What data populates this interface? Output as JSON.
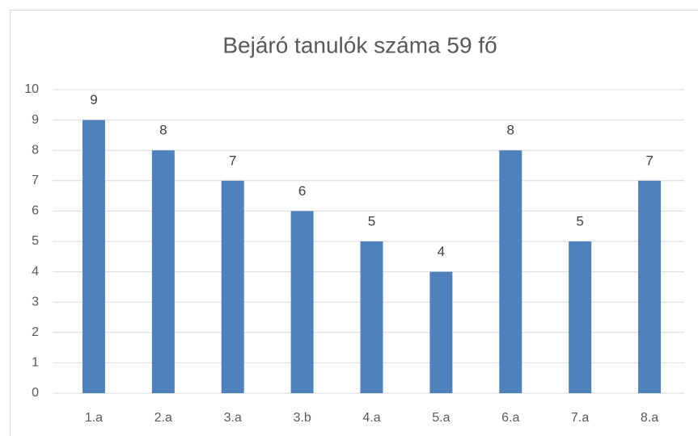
{
  "chart_data": {
    "type": "bar",
    "title": "Bejáró tanulók száma 59 fő",
    "categories": [
      "1.a",
      "2.a",
      "3.a",
      "3.b",
      "4.a",
      "5.a",
      "6.a",
      "7.a",
      "8.a"
    ],
    "values": [
      9,
      8,
      7,
      6,
      5,
      4,
      8,
      5,
      7
    ],
    "color": "#4f81bd",
    "ylim": [
      0,
      10
    ],
    "yticks": [
      0,
      1,
      2,
      3,
      4,
      5,
      6,
      7,
      8,
      9,
      10
    ],
    "grid": true
  }
}
